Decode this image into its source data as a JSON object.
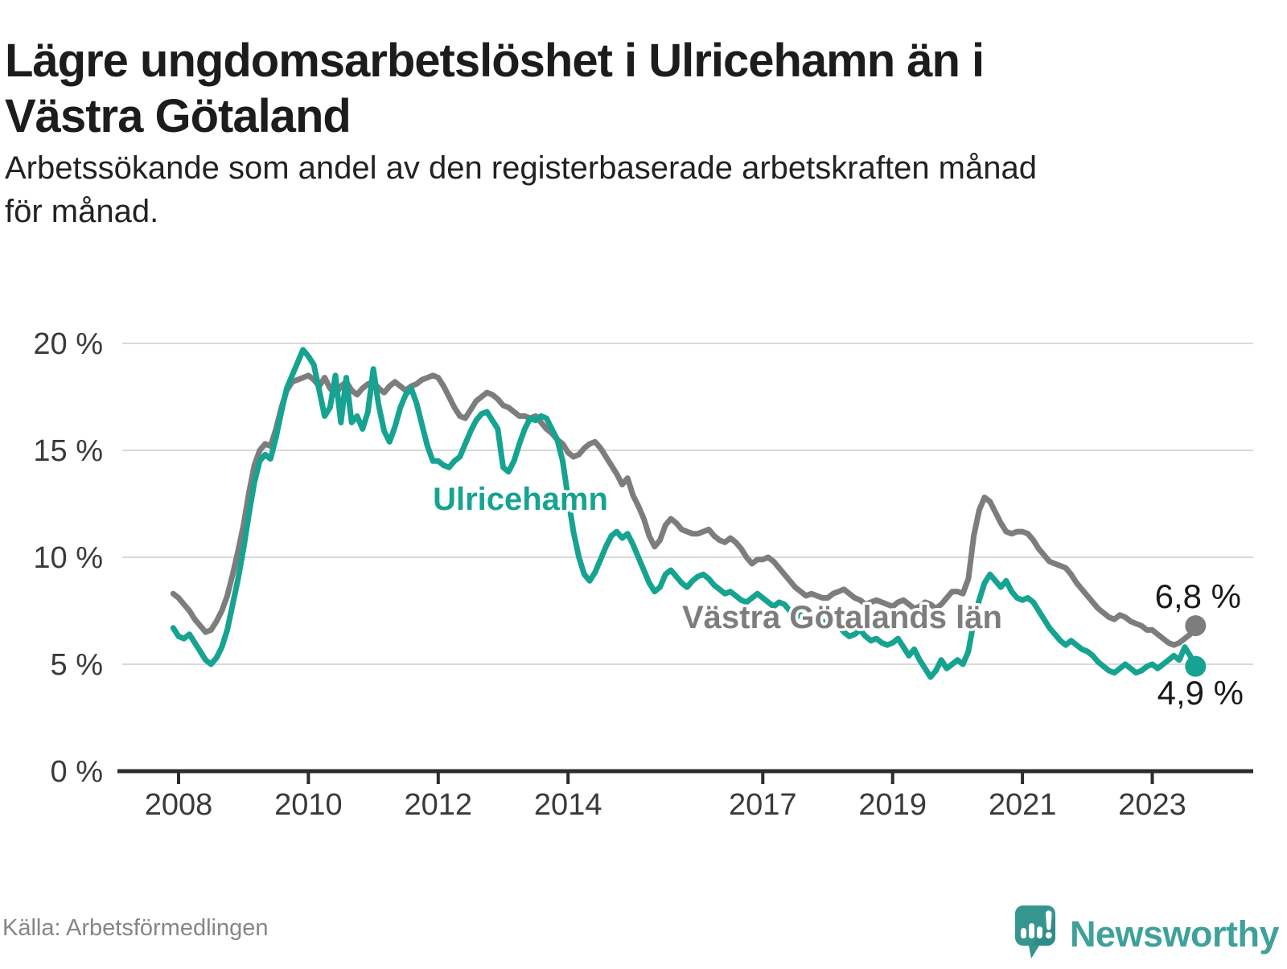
{
  "header": {
    "title_line1": "Lägre ungdomsarbetslöshet i Ulricehamn än i",
    "title_line2": "Västra Götaland",
    "subtitle_line1": "Arbetssökande som andel av den registerbaserade arbetskraften månad",
    "subtitle_line2": "för månad."
  },
  "chart_data": {
    "type": "line",
    "title": "Lägre ungdomsarbetslöshet i Ulricehamn än i Västra Götaland",
    "subtitle": "Arbetssökande som andel av den registerbaserade arbetskraften månad för månad.",
    "unit": "%",
    "frequency": "monthly",
    "x_start": "2007-12",
    "x_end": "2023-09",
    "ylim": [
      0,
      20
    ],
    "grid": "horizontal",
    "y_ticks": [
      0,
      5,
      10,
      15,
      20
    ],
    "y_tick_suffix": " %",
    "x_ticks": [
      2008,
      2010,
      2012,
      2014,
      2017,
      2019,
      2021,
      2023
    ],
    "colors": {
      "ulricehamn": "#16a391",
      "vastra_gotaland": "#7d7d7d",
      "gridline": "#d9d9d9",
      "axis": "#2d2d2d",
      "end_label_text": "#1a1a1a"
    },
    "series": [
      {
        "name": "Västra Götalands län",
        "color": "#7d7d7d",
        "end_label": "6,8 %",
        "end_value": 6.8,
        "values": [
          8.3,
          8.1,
          7.8,
          7.5,
          7.1,
          6.8,
          6.5,
          6.6,
          7.0,
          7.5,
          8.2,
          9.2,
          10.3,
          11.5,
          13.0,
          14.3,
          15.0,
          15.3,
          15.2,
          16.0,
          17.0,
          17.8,
          18.2,
          18.3,
          18.4,
          18.5,
          18.3,
          18.0,
          18.4,
          17.9,
          17.6,
          18.0,
          18.2,
          17.8,
          17.6,
          17.9,
          18.1,
          18.2,
          17.9,
          17.7,
          18.0,
          18.2,
          18.0,
          17.8,
          18.0,
          18.1,
          18.3,
          18.4,
          18.5,
          18.4,
          18.0,
          17.5,
          17.0,
          16.6,
          16.5,
          16.9,
          17.3,
          17.5,
          17.7,
          17.6,
          17.4,
          17.1,
          17.0,
          16.8,
          16.6,
          16.6,
          16.5,
          16.6,
          16.3,
          16.0,
          15.8,
          15.5,
          15.3,
          14.9,
          14.7,
          14.8,
          15.1,
          15.3,
          15.4,
          15.1,
          14.7,
          14.3,
          13.9,
          13.4,
          13.7,
          12.9,
          12.4,
          11.8,
          11.0,
          10.5,
          10.8,
          11.5,
          11.8,
          11.6,
          11.3,
          11.2,
          11.1,
          11.1,
          11.2,
          11.3,
          11.0,
          10.8,
          10.7,
          10.9,
          10.7,
          10.4,
          10.0,
          9.7,
          9.9,
          9.9,
          10.0,
          9.8,
          9.5,
          9.2,
          8.9,
          8.6,
          8.4,
          8.2,
          8.3,
          8.2,
          8.1,
          8.1,
          8.3,
          8.4,
          8.5,
          8.3,
          8.1,
          8.0,
          7.8,
          7.9,
          8.0,
          7.9,
          7.8,
          7.7,
          7.9,
          8.0,
          7.8,
          7.6,
          7.7,
          7.9,
          7.8,
          7.6,
          7.8,
          8.1,
          8.4,
          8.4,
          8.3,
          9.0,
          11.0,
          12.2,
          12.8,
          12.6,
          12.1,
          11.6,
          11.2,
          11.1,
          11.2,
          11.2,
          11.1,
          10.8,
          10.4,
          10.1,
          9.8,
          9.7,
          9.6,
          9.5,
          9.2,
          8.8,
          8.5,
          8.2,
          7.9,
          7.6,
          7.4,
          7.2,
          7.1,
          7.3,
          7.2,
          7.0,
          6.9,
          6.8,
          6.6,
          6.6,
          6.4,
          6.2,
          6.0,
          5.9,
          6.0,
          6.2,
          6.4,
          6.8
        ]
      },
      {
        "name": "Ulricehamn",
        "color": "#16a391",
        "end_label": "4,9 %",
        "end_value": 4.9,
        "values": [
          6.7,
          6.3,
          6.2,
          6.4,
          6.0,
          5.6,
          5.2,
          5.0,
          5.3,
          5.8,
          6.6,
          7.8,
          9.0,
          10.4,
          12.0,
          13.5,
          14.5,
          14.8,
          14.6,
          15.6,
          16.8,
          17.9,
          18.5,
          19.1,
          19.7,
          19.4,
          19.0,
          17.8,
          16.6,
          17.0,
          18.5,
          16.3,
          18.4,
          16.3,
          16.6,
          16.0,
          16.8,
          18.8,
          17.1,
          15.9,
          15.4,
          16.1,
          17.0,
          17.6,
          17.9,
          17.2,
          16.2,
          15.2,
          14.5,
          14.5,
          14.3,
          14.2,
          14.5,
          14.7,
          15.3,
          15.9,
          16.4,
          16.7,
          16.8,
          16.4,
          16.0,
          14.2,
          14.0,
          14.5,
          15.3,
          16.0,
          16.5,
          16.4,
          16.6,
          16.5,
          16.0,
          15.5,
          14.5,
          12.8,
          11.2,
          10.0,
          9.2,
          8.9,
          9.3,
          9.9,
          10.5,
          11.0,
          11.2,
          10.9,
          11.1,
          10.6,
          10.0,
          9.4,
          8.8,
          8.4,
          8.6,
          9.2,
          9.4,
          9.1,
          8.8,
          8.6,
          8.9,
          9.1,
          9.2,
          9.0,
          8.7,
          8.5,
          8.3,
          8.4,
          8.2,
          8.0,
          7.9,
          8.1,
          8.3,
          8.1,
          7.9,
          7.7,
          7.9,
          7.8,
          7.5,
          7.2,
          7.3,
          7.1,
          7.0,
          7.2,
          7.0,
          6.9,
          7.0,
          6.8,
          6.5,
          6.3,
          6.4,
          6.6,
          6.3,
          6.1,
          6.2,
          6.0,
          5.9,
          6.0,
          6.2,
          5.8,
          5.4,
          5.7,
          5.2,
          4.8,
          4.4,
          4.7,
          5.2,
          4.8,
          5.0,
          5.2,
          5.0,
          5.6,
          7.0,
          8.0,
          8.8,
          9.2,
          8.9,
          8.6,
          8.9,
          8.4,
          8.1,
          8.0,
          8.1,
          7.9,
          7.5,
          7.1,
          6.7,
          6.4,
          6.1,
          5.9,
          6.1,
          5.9,
          5.7,
          5.6,
          5.4,
          5.1,
          4.9,
          4.7,
          4.6,
          4.8,
          5.0,
          4.8,
          4.6,
          4.7,
          4.9,
          5.0,
          4.8,
          5.0,
          5.2,
          5.4,
          5.2,
          5.8,
          5.4,
          4.9
        ]
      }
    ]
  },
  "footer": {
    "source": "Källa: Arbetsförmedlingen",
    "brand": "Newsworthy"
  }
}
